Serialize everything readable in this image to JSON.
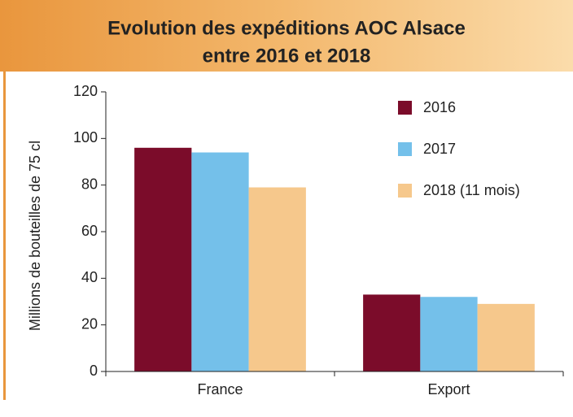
{
  "chart_data": {
    "type": "bar",
    "title": [
      "Evolution des expéditions AOC Alsace",
      "entre 2016 et 2018"
    ],
    "y_label": "Millions de bouteilles de 75 cl",
    "categories": [
      "France",
      "Export"
    ],
    "series": [
      {
        "name": "2016",
        "color": "#7b0c2a",
        "values": [
          96,
          33
        ]
      },
      {
        "name": "2017",
        "color": "#74c0ea",
        "values": [
          94,
          32
        ]
      },
      {
        "name": "2018 (11 mois)",
        "color": "#f6c88c",
        "values": [
          79,
          29
        ]
      }
    ],
    "ylim": [
      0,
      120
    ],
    "yticks": [
      0,
      20,
      40,
      60,
      80,
      100,
      120
    ],
    "legend": "top-right"
  }
}
